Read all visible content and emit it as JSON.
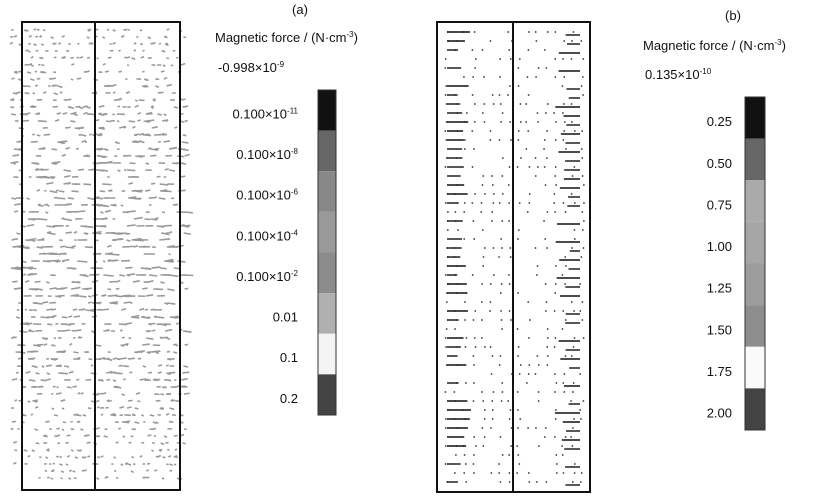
{
  "panels": [
    {
      "label": "(a)",
      "title": {
        "text": "Magnetic force / (N·cm",
        "sup": "-3",
        "tail": ")"
      },
      "reference": {
        "text": "-0.998×10",
        "sup": "-9"
      },
      "scale": [
        {
          "text": "0.100×10",
          "sup": "-11"
        },
        {
          "text": "0.100×10",
          "sup": "-8"
        },
        {
          "text": "0.100×10",
          "sup": "-6"
        },
        {
          "text": "0.100×10",
          "sup": "-4"
        },
        {
          "text": "0.100×10",
          "sup": "-2"
        },
        {
          "text": "0.01"
        },
        {
          "text": "0.1"
        },
        {
          "text": "0.2"
        }
      ]
    },
    {
      "label": "(b)",
      "title": {
        "text": "Magnetic force / (N·cm",
        "sup": "-3",
        "tail": ")"
      },
      "reference": {
        "text": "0.135×10",
        "sup": "-10"
      },
      "scale": [
        {
          "text": "0.25"
        },
        {
          "text": "0.50"
        },
        {
          "text": "0.75"
        },
        {
          "text": "1.00"
        },
        {
          "text": "1.25"
        },
        {
          "text": "1.50"
        },
        {
          "text": "1.75"
        },
        {
          "text": "2.00"
        }
      ]
    }
  ]
}
